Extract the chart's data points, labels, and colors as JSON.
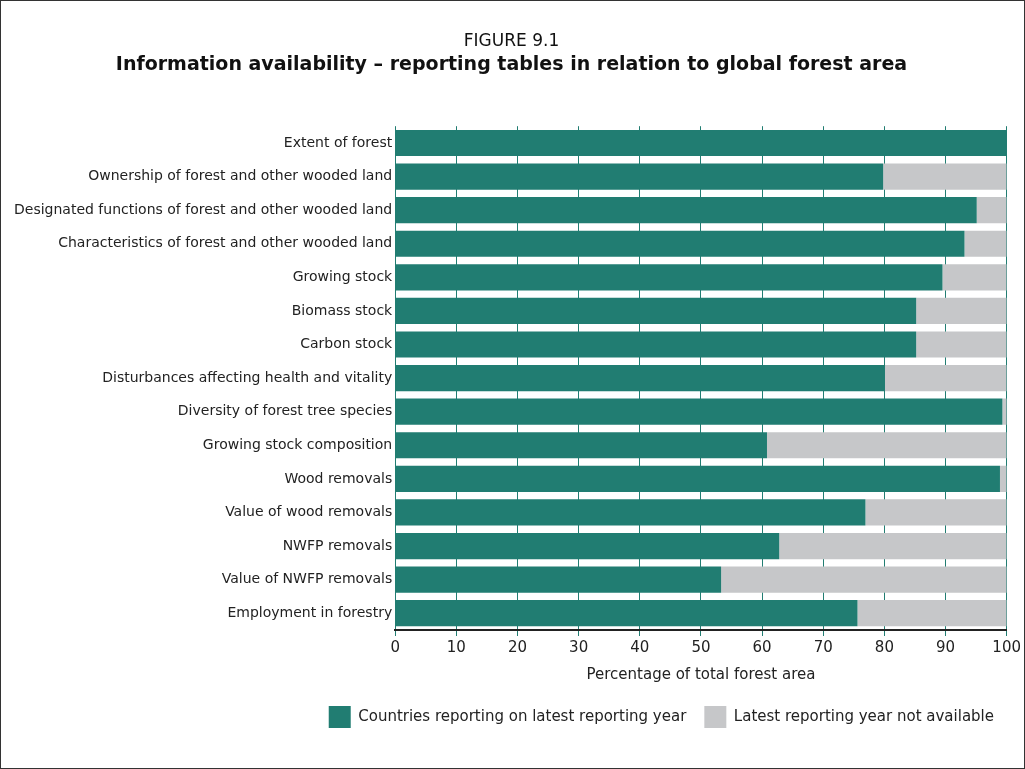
{
  "chart_data": {
    "type": "bar",
    "orientation": "horizontal",
    "stacked": true,
    "title": "FIGURE 9.1",
    "subtitle": "Information availability – reporting tables in relation to global forest area",
    "xlabel": "Percentage of total forest area",
    "categories": [
      "Extent of forest",
      "Ownership of forest and other wooded land",
      "Designated functions of forest and other wooded land",
      "Characteristics of forest and other wooded land",
      "Growing stock",
      "Biomass stock",
      "Carbon stock",
      "Disturbances affecting health and vitality",
      "Diversity of forest tree species",
      "Growing stock composition",
      "Wood removals",
      "Value of wood removals",
      "NWFP removals",
      "Value of NWFP removals",
      "Employment in forestry"
    ],
    "series": [
      {
        "name": "Countries reporting on latest reporting year",
        "color": "#217d72",
        "values": [
          100,
          79.8,
          95.1,
          93.1,
          89.5,
          85.2,
          85.2,
          80.1,
          99.3,
          60.8,
          98.9,
          76.9,
          62.8,
          53.3,
          75.6
        ]
      },
      {
        "name": "Latest reporting year not available",
        "color": "#c6c7c9",
        "values": [
          0,
          20.2,
          4.9,
          6.9,
          10.5,
          14.8,
          14.8,
          19.9,
          0.7,
          39.2,
          1.1,
          23.1,
          37.2,
          46.7,
          24.4
        ]
      }
    ],
    "xlim": [
      0,
      100
    ],
    "xticks": [
      0,
      10,
      20,
      30,
      40,
      50,
      60,
      70,
      80,
      90,
      100
    ],
    "grid": "x",
    "legend": "bottom"
  }
}
